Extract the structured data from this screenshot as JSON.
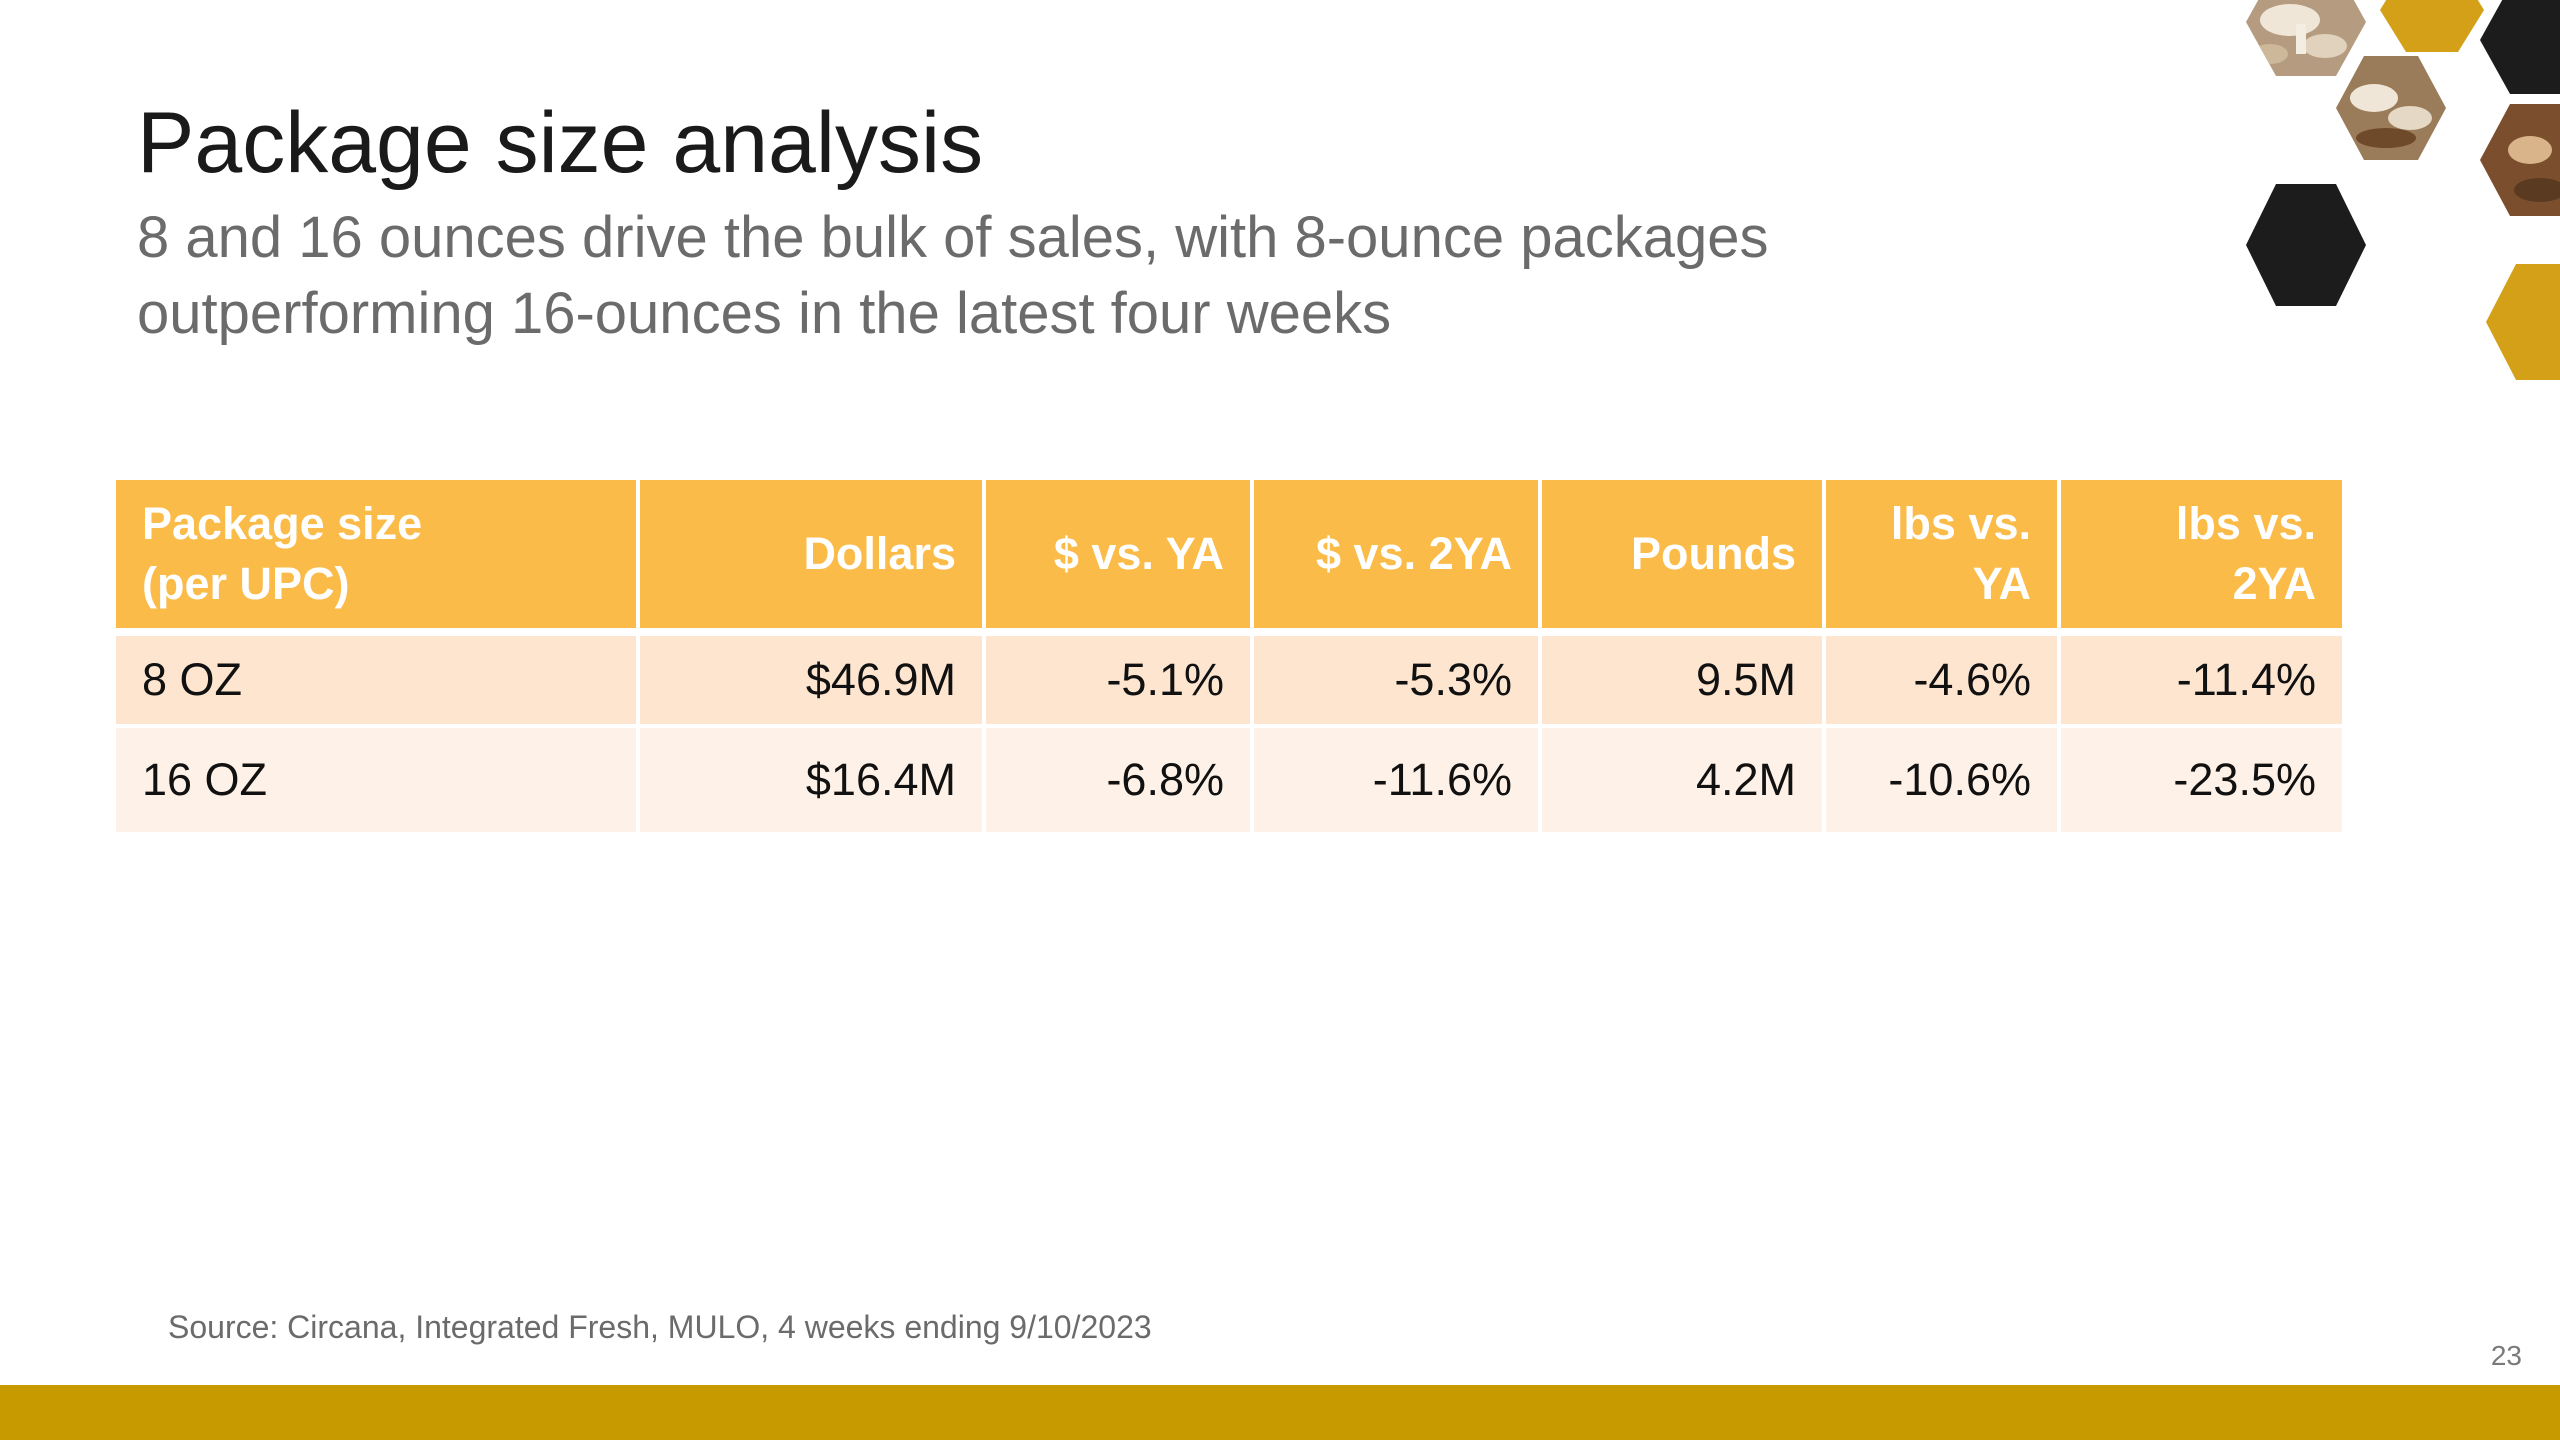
{
  "slide": {
    "title": "Package size analysis",
    "subtitle_line1": "8 and 16 ounces drive the bulk of sales, with 8-ounce packages",
    "subtitle_line2": "outperforming 16-ounces in the latest four weeks",
    "source": "Source: Circana, Integrated Fresh, MULO, 4 weeks ending 9/10/2023",
    "page_number": "23"
  },
  "table": {
    "headers": {
      "package_size_line1": "Package size",
      "package_size_line2": "(per UPC)",
      "dollars": "Dollars",
      "dollars_vs_ya": "$ vs. YA",
      "dollars_vs_2ya": "$ vs. 2YA",
      "pounds": "Pounds",
      "lbs_vs_ya_line1": "lbs vs.",
      "lbs_vs_ya_line2": "YA",
      "lbs_vs_2ya": "lbs vs. 2YA"
    },
    "rows": [
      {
        "package_size": "8 OZ",
        "dollars": "$46.9M",
        "dollars_vs_ya": "-5.1%",
        "dollars_vs_2ya": "-5.3%",
        "pounds": "9.5M",
        "lbs_vs_ya": "-4.6%",
        "lbs_vs_2ya": "-11.4%"
      },
      {
        "package_size": "16 OZ",
        "dollars": "$16.4M",
        "dollars_vs_ya": "-6.8%",
        "dollars_vs_2ya": "-11.6%",
        "pounds": "4.2M",
        "lbs_vs_ya": "-10.6%",
        "lbs_vs_2ya": "-23.5%"
      }
    ]
  },
  "colors": {
    "header_fill": "#fbbb48",
    "row_1_fill": "#fde5d0",
    "row_2_fill": "#fef2e8",
    "bottom_bar": "#c79a00",
    "hex_gold": "#d4a017",
    "hex_black": "#1c1c1c"
  },
  "icons": {
    "decoration": "mushroom-hexagon-collage"
  }
}
